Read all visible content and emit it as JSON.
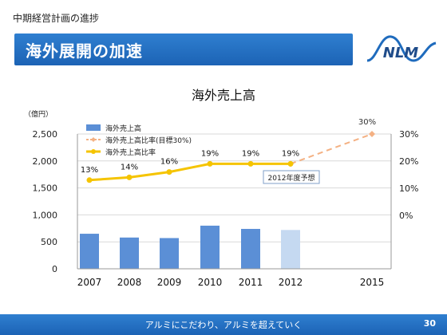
{
  "slide": {
    "subtitle": "中期経営計画の進捗",
    "title": "海外展開の加速",
    "logo_text": "NLM",
    "footer": "アルミにこだわり、アルミを超えていく",
    "page_number": "30",
    "colors": {
      "accent": "#1f6bbd",
      "bar": "#5b8fd6",
      "bar_forecast": "#c5d9f1",
      "line": "#f5c400",
      "target": "#f4b183"
    }
  },
  "chart_data": {
    "type": "bar",
    "title": "海外売上高",
    "categories": [
      "2007",
      "2008",
      "2009",
      "2010",
      "2011",
      "2012",
      "2015"
    ],
    "left_unit": "（億円）",
    "ylim_left": [
      0,
      2500
    ],
    "left_ticks": [
      "0",
      "500",
      "1,000",
      "1,500",
      "2,000",
      "2,500"
    ],
    "ylim_right": [
      0,
      30
    ],
    "right_ticks": [
      "0%",
      "10%",
      "20%",
      "30%"
    ],
    "grid": true,
    "legend": [
      {
        "label": "海外売上高",
        "kind": "bar"
      },
      {
        "label": "海外売上高比率(目標30%)",
        "kind": "dashed"
      },
      {
        "label": "海外売上高比率",
        "kind": "line"
      }
    ],
    "series": [
      {
        "kind": "bar",
        "x": [
          "2007",
          "2008",
          "2009",
          "2010",
          "2011",
          "2012"
        ],
        "values": [
          650,
          580,
          570,
          800,
          740,
          720
        ],
        "forecast_index": 5
      },
      {
        "kind": "line",
        "x": [
          "2007",
          "2008",
          "2009",
          "2010",
          "2011",
          "2012"
        ],
        "values": [
          13,
          14,
          16,
          19,
          19,
          19
        ],
        "labels": [
          "13%",
          "14%",
          "16%",
          "19%",
          "19%",
          "19%"
        ]
      },
      {
        "kind": "dashed",
        "x": [
          "2012",
          "2015"
        ],
        "values": [
          19,
          30
        ],
        "labels": [
          "",
          "30%"
        ]
      }
    ],
    "annotation": "2012年度予想"
  }
}
